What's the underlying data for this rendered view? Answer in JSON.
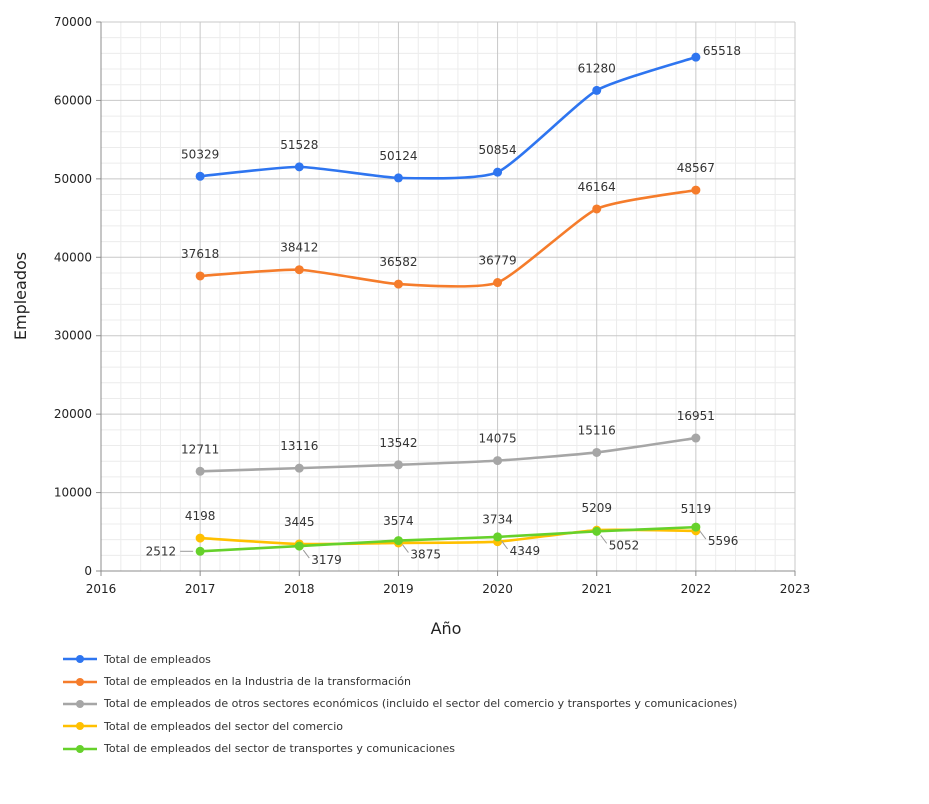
{
  "chart_data": {
    "type": "line",
    "title": "",
    "xlabel": "Año",
    "ylabel": "Empleados",
    "xlim": [
      2016,
      2023
    ],
    "ylim": [
      0,
      70000
    ],
    "x_ticks": [
      "2016",
      "2017",
      "2018",
      "2019",
      "2020",
      "2021",
      "2022",
      "2023"
    ],
    "y_ticks": [
      "0",
      "10000",
      "20000",
      "30000",
      "40000",
      "50000",
      "60000",
      "70000"
    ],
    "grid": true,
    "legend_position": "bottom",
    "x": [
      2017,
      2018,
      2019,
      2020,
      2021,
      2022
    ],
    "series": [
      {
        "name": "Total de empleados",
        "color": "#2e75f0",
        "values": [
          50329,
          51528,
          50124,
          50854,
          61280,
          65518
        ],
        "labels": [
          "50329",
          "51528",
          "50124",
          "50854",
          "61280",
          "65518"
        ]
      },
      {
        "name": "Total de empleados en la Industria de la transformación",
        "color": "#f57c2b",
        "values": [
          37618,
          38412,
          36582,
          36779,
          46164,
          48567
        ],
        "labels": [
          "37618",
          "38412",
          "36582",
          "36779",
          "46164",
          "48567"
        ]
      },
      {
        "name": "Total de empleados de otros sectores económicos (incluido el sector del comercio y transportes y comunicaciones)",
        "color": "#a6a6a6",
        "values": [
          12711,
          13116,
          13542,
          14075,
          15116,
          16951
        ],
        "labels": [
          "12711",
          "13116",
          "13542",
          "14075",
          "15116",
          "16951"
        ]
      },
      {
        "name": "Total de empleados del sector del comercio",
        "color": "#ffc000",
        "values": [
          4198,
          3445,
          3574,
          3734,
          5209,
          5119
        ],
        "labels": [
          "4198",
          "3445",
          "3574",
          "3734",
          "5209",
          "5119"
        ]
      },
      {
        "name": "Total de empleados del sector de transportes y comunicaciones",
        "color": "#66d12b",
        "values": [
          2512,
          3179,
          3875,
          4349,
          5052,
          5596
        ],
        "labels": [
          "2512",
          "3179",
          "3875",
          "4349",
          "5052",
          "5596"
        ]
      }
    ]
  }
}
